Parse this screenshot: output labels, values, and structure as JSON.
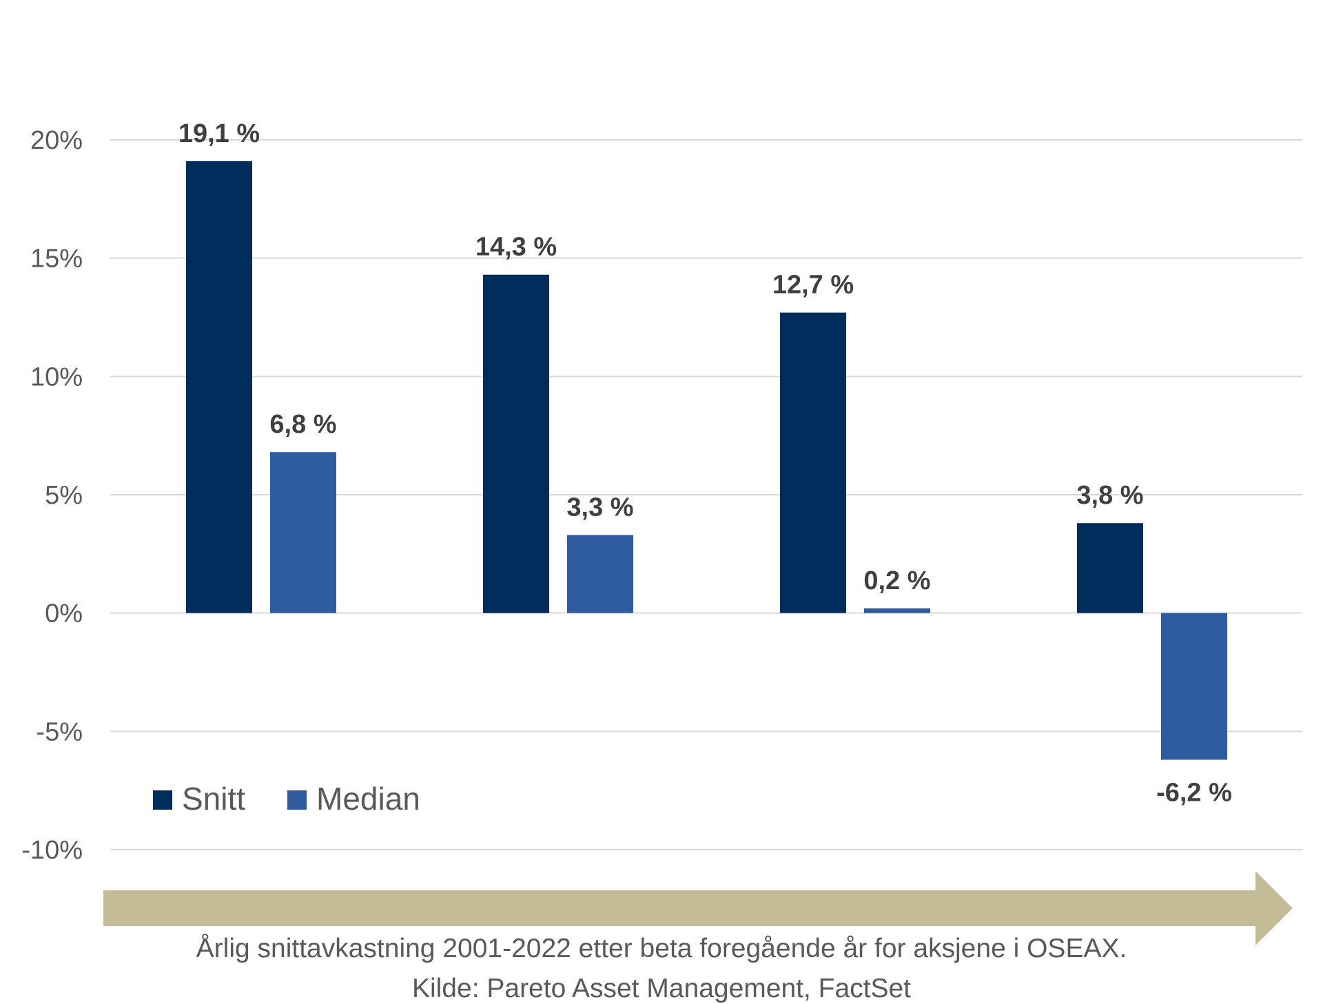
{
  "chart_data": {
    "type": "bar",
    "categories": [
      "",
      "",
      "",
      ""
    ],
    "series": [
      {
        "name": "Snitt",
        "color": "#002d5c",
        "values": [
          19.1,
          14.3,
          12.7,
          3.8
        ],
        "labels": [
          "19,1 %",
          "14,3 %",
          "12,7 %",
          "3,8 %"
        ]
      },
      {
        "name": "Median",
        "color": "#2e5c9e",
        "values": [
          6.8,
          3.3,
          0.2,
          -6.2
        ],
        "labels": [
          "6,8 %",
          "3,3 %",
          "0,2 %",
          "-6,2 %"
        ]
      }
    ],
    "ylim": [
      -10,
      20
    ],
    "yticks": [
      20,
      15,
      10,
      5,
      0,
      -5,
      -10
    ],
    "ytick_labels": [
      "20%",
      "15%",
      "10%",
      "5%",
      "0%",
      "-5%",
      "-10%"
    ],
    "grid": true,
    "legend": "bottom-left",
    "title": "",
    "xlabel": "",
    "ylabel": ""
  },
  "arrow_color": "#c4bc96",
  "caption": {
    "line1": "Årlig snittavkastning 2001-2022 etter beta foregående år for aksjene i OSEAX.",
    "line2": "Kilde: Pareto Asset Management, FactSet"
  }
}
